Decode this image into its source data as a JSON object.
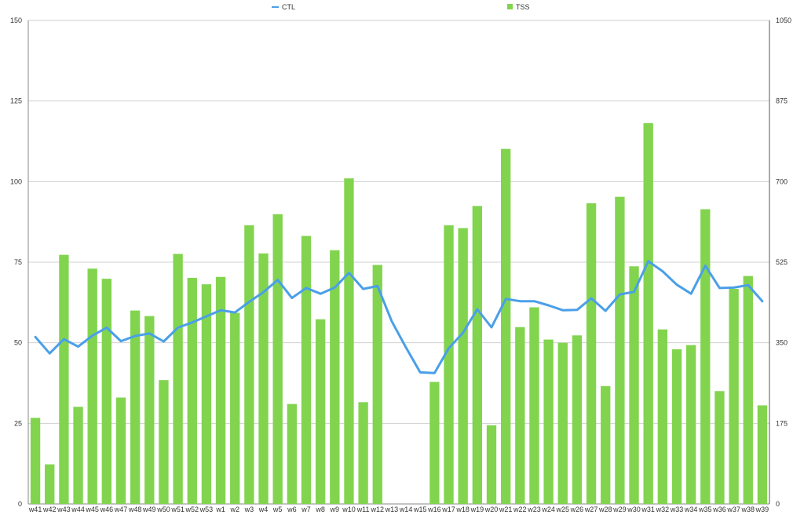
{
  "chart_data": {
    "type": "bar",
    "categories": [
      "w41",
      "w42",
      "w43",
      "w44",
      "w45",
      "w46",
      "w47",
      "w48",
      "w49",
      "w50",
      "w51",
      "w52",
      "w53",
      "w1",
      "w2",
      "w3",
      "w4",
      "w5",
      "w6",
      "w7",
      "w8",
      "w9",
      "w10",
      "w11",
      "w12",
      "w13",
      "w14",
      "w15",
      "w16",
      "w17",
      "w18",
      "w19",
      "w20",
      "w21",
      "w22",
      "w23",
      "w24",
      "w25",
      "w26",
      "w27",
      "w28",
      "w29",
      "w30",
      "w31",
      "w32",
      "w33",
      "w34",
      "w35",
      "w36",
      "w37",
      "w38",
      "w39"
    ],
    "series": [
      {
        "name": "TSS",
        "type": "bar",
        "axis": "right",
        "color": "#82d44f",
        "values": [
          187,
          86,
          541,
          211,
          511,
          489,
          231,
          420,
          408,
          269,
          543,
          491,
          477,
          493,
          415,
          605,
          544,
          629,
          217,
          582,
          401,
          551,
          707,
          221,
          519,
          0,
          0,
          0,
          265,
          605,
          599,
          647,
          171,
          771,
          384,
          427,
          357,
          350,
          366,
          653,
          256,
          667,
          516,
          827,
          379,
          336,
          345,
          640,
          245,
          467,
          495,
          214
        ]
      },
      {
        "name": "CTL",
        "type": "line",
        "axis": "left",
        "color": "#4a9fe8",
        "values": [
          51.8,
          46.7,
          51.1,
          48.8,
          52.2,
          54.7,
          50.5,
          52.1,
          52.9,
          50.4,
          54.7,
          56.3,
          58.2,
          60.1,
          59.4,
          62.7,
          65.7,
          69.5,
          63.9,
          67.0,
          65.2,
          67.1,
          71.7,
          66.7,
          67.6,
          56.7,
          48.5,
          40.8,
          40.6,
          48.3,
          53.1,
          60.4,
          54.8,
          63.6,
          62.9,
          62.9,
          61.6,
          60.1,
          60.2,
          63.8,
          59.9,
          65.0,
          65.8,
          75.3,
          72.2,
          68.0,
          65.2,
          73.9,
          67.0,
          67.1,
          67.9,
          62.9
        ]
      }
    ],
    "ylim_left": [
      0,
      150
    ],
    "ylim_right": [
      0,
      1050
    ],
    "yticks_left": [
      "0",
      "25",
      "50",
      "75",
      "100",
      "125",
      "150"
    ],
    "yticks_right": [
      "0",
      "175",
      "350",
      "525",
      "700",
      "875",
      "1050"
    ],
    "grid": true,
    "legend_position": "top",
    "legend": [
      "CTL",
      "TSS"
    ],
    "title": "",
    "xlabel": "",
    "ylabel": ""
  }
}
